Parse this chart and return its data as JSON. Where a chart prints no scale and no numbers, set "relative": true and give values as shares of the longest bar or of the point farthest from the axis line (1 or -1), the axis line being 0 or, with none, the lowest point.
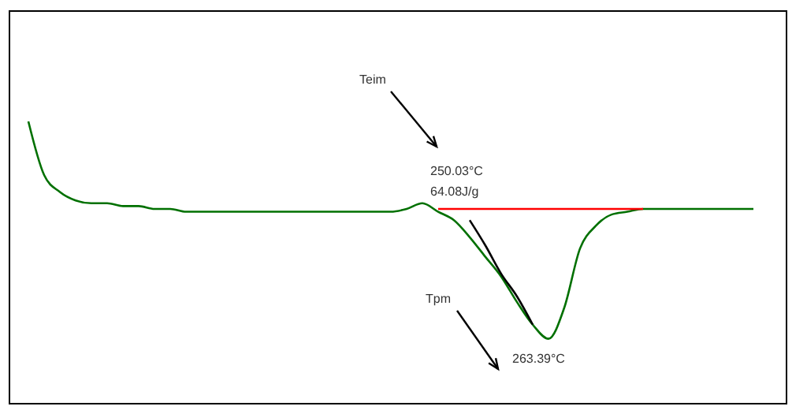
{
  "chart_data": {
    "type": "line",
    "relative": true,
    "marker": "none",
    "line_style": "solid",
    "categories": [
      null,
      null,
      null,
      null,
      null,
      null,
      null,
      null,
      null,
      null,
      null,
      null,
      null,
      null,
      null,
      null,
      null,
      null,
      null,
      null,
      null,
      null,
      null,
      null,
      null,
      null,
      null,
      null,
      null,
      null,
      null,
      null,
      null,
      null,
      null,
      null,
      null,
      null,
      null,
      null,
      null,
      null,
      null,
      null,
      null,
      null,
      null
    ],
    "series": [
      {
        "color": "#007000",
        "values": [
          1,
          0.81,
          0.75,
          0.72,
          0.71,
          0.71,
          0.7,
          0.7,
          0.69,
          0.69,
          0.68,
          0.68,
          0.68,
          0.68,
          0.68,
          0.68,
          0.68,
          0.68,
          0.68,
          0.68,
          0.68,
          0.68,
          0.68,
          0.68,
          0.69,
          0.71,
          0.68,
          0.65,
          0.59,
          0.52,
          0.45,
          0.36,
          0.28,
          0.23,
          0.34,
          0.55,
          0.63,
          0.67,
          0.68,
          0.69,
          0.69,
          0.69,
          0.69,
          0.69,
          0.69,
          0.69,
          0.69
        ]
      },
      {
        "color": "#ff0000",
        "values": [
          null,
          null,
          null,
          null,
          null,
          null,
          null,
          null,
          null,
          null,
          null,
          null,
          null,
          null,
          null,
          null,
          null,
          null,
          null,
          null,
          null,
          null,
          null,
          null,
          null,
          null,
          0.69,
          0.69,
          0.69,
          0.69,
          0.69,
          0.69,
          0.69,
          0.69,
          0.69,
          0.69,
          0.69,
          0.69,
          0.69,
          0.69,
          null,
          null,
          null,
          null,
          null,
          null,
          null
        ]
      },
      {
        "color": "#000000",
        "values": [
          null,
          null,
          null,
          null,
          null,
          null,
          null,
          null,
          null,
          null,
          null,
          null,
          null,
          null,
          null,
          null,
          null,
          null,
          null,
          null,
          null,
          null,
          null,
          null,
          null,
          null,
          null,
          null,
          0.65,
          0.56,
          0.46,
          0.38,
          0.28,
          null,
          null,
          null,
          null,
          null,
          null,
          null,
          null,
          null,
          null,
          null,
          null,
          null,
          null
        ]
      }
    ],
    "annotations": [
      "Teim",
      "250.03°C",
      "64.08J/g",
      "Tpm",
      "263.39°C"
    ]
  }
}
